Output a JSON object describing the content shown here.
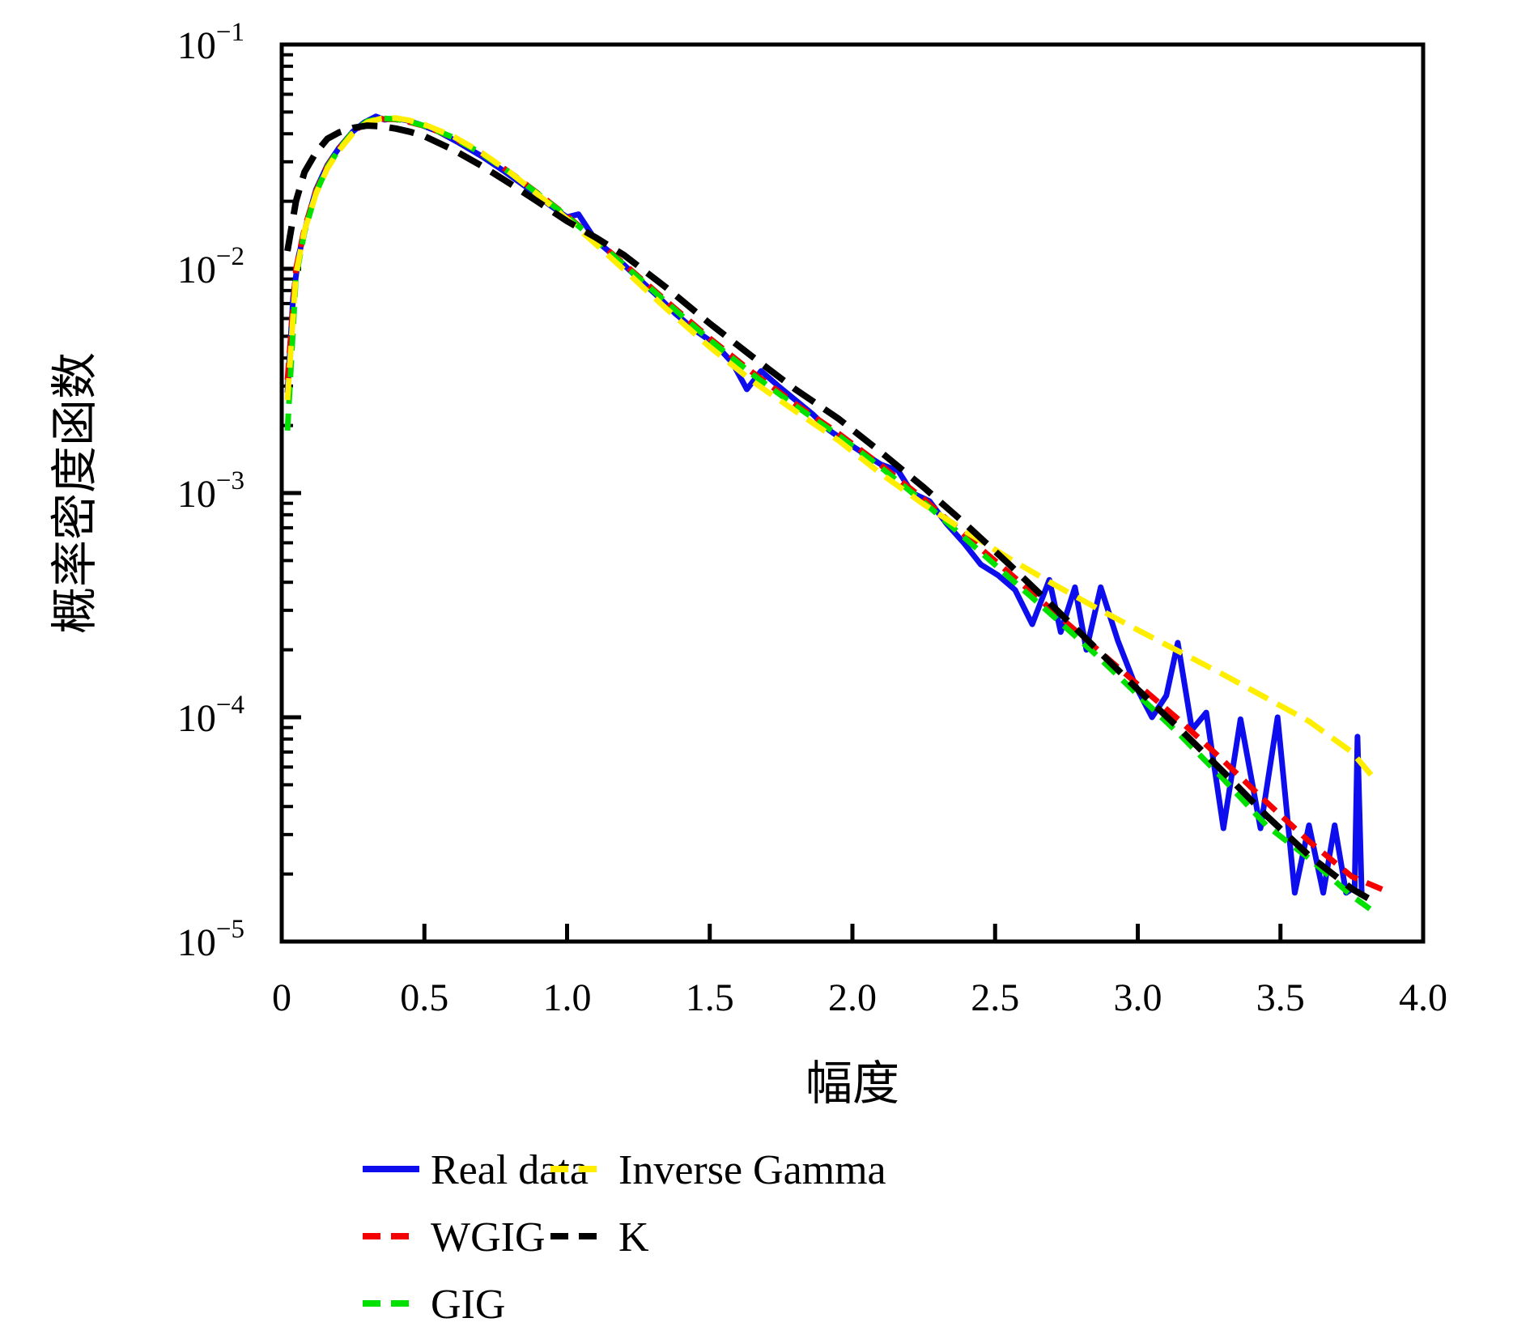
{
  "figure": {
    "background_color": "#ffffff",
    "axis_color": "#000000"
  },
  "chart_data": {
    "type": "line",
    "title": "",
    "xlabel": "幅度",
    "ylabel": "概率密度函数",
    "grid": false,
    "x_axis": {
      "min": 0,
      "max": 4,
      "tick_values": [
        0,
        0.5,
        1.0,
        1.5,
        2.0,
        2.5,
        3.0,
        3.5,
        4.0
      ],
      "tick_labels": [
        "0",
        "0.5",
        "1.0",
        "1.5",
        "2.0",
        "2.5",
        "3.0",
        "3.5",
        "4.0"
      ]
    },
    "y_axis": {
      "scale": "log",
      "min": 1e-05,
      "max": 0.1,
      "tick_base": "10",
      "tick_exponents": [
        -1,
        -2,
        -3,
        -4,
        -5
      ]
    },
    "legend": {
      "position": "below-chart",
      "columns": 2,
      "items": [
        {
          "label": "Real data",
          "series": 0,
          "col": 0,
          "row": 0
        },
        {
          "label": "WGIG",
          "series": 1,
          "col": 0,
          "row": 1
        },
        {
          "label": "GIG",
          "series": 2,
          "col": 0,
          "row": 2
        },
        {
          "label": "Inverse Gamma",
          "series": 3,
          "col": 1,
          "row": 0
        },
        {
          "label": "K",
          "series": 4,
          "col": 1,
          "row": 1
        }
      ]
    },
    "series": [
      {
        "name": "Real data",
        "color": "#0d0dee",
        "style": "solid",
        "x": [
          0.02,
          0.04,
          0.06,
          0.09,
          0.12,
          0.16,
          0.2,
          0.25,
          0.29,
          0.33,
          0.36,
          0.4,
          0.44,
          0.48,
          0.55,
          0.62,
          0.7,
          0.78,
          0.86,
          0.94,
          1.0,
          1.04,
          1.1,
          1.17,
          1.24,
          1.31,
          1.38,
          1.45,
          1.52,
          1.58,
          1.63,
          1.68,
          1.74,
          1.8,
          1.86,
          1.92,
          1.98,
          2.04,
          2.1,
          2.16,
          2.21,
          2.27,
          2.33,
          2.39,
          2.45,
          2.51,
          2.57,
          2.63,
          2.69,
          2.73,
          2.78,
          2.82,
          2.87,
          2.93,
          2.99,
          3.05,
          3.1,
          3.14,
          3.19,
          3.24,
          3.3,
          3.36,
          3.43,
          3.49,
          3.55,
          3.6,
          3.65,
          3.69,
          3.73,
          3.76,
          3.77,
          3.785
        ],
        "y": [
          0.0028,
          0.0075,
          0.0115,
          0.0165,
          0.0225,
          0.029,
          0.0345,
          0.041,
          0.045,
          0.0478,
          0.0462,
          0.0468,
          0.0458,
          0.0442,
          0.0408,
          0.0365,
          0.0318,
          0.0272,
          0.023,
          0.0192,
          0.017,
          0.0175,
          0.0134,
          0.0113,
          0.0093,
          0.0077,
          0.0063,
          0.0053,
          0.0046,
          0.0038,
          0.0029,
          0.0035,
          0.003,
          0.0026,
          0.00225,
          0.0019,
          0.00168,
          0.0015,
          0.00134,
          0.00126,
          0.001,
          0.00092,
          0.00073,
          0.0006,
          0.00048,
          0.00043,
          0.00037,
          0.00026,
          0.00041,
          0.00024,
          0.00038,
          0.0002,
          0.00038,
          0.00022,
          0.00014,
          0.0001,
          0.000125,
          0.000215,
          8.8e-05,
          0.000105,
          3.2e-05,
          9.8e-05,
          3.2e-05,
          0.0001,
          1.65e-05,
          3.3e-05,
          1.65e-05,
          3.3e-05,
          1.65e-05,
          1.75e-05,
          8.2e-05,
          1.58e-05
        ]
      },
      {
        "name": "WGIG",
        "color": "#f50000",
        "style": "dashed",
        "x": [
          0.02,
          0.05,
          0.08,
          0.12,
          0.16,
          0.2,
          0.25,
          0.3,
          0.35,
          0.4,
          0.45,
          0.5,
          0.6,
          0.7,
          0.8,
          0.9,
          1.0,
          1.1,
          1.2,
          1.35,
          1.5,
          1.65,
          1.8,
          1.95,
          2.1,
          2.25,
          2.4,
          2.55,
          2.7,
          2.85,
          3.0,
          3.15,
          3.3,
          3.45,
          3.6,
          3.75,
          3.87
        ],
        "y": [
          0.0032,
          0.01,
          0.0152,
          0.0222,
          0.0287,
          0.0342,
          0.0408,
          0.0452,
          0.0466,
          0.0463,
          0.045,
          0.0433,
          0.0385,
          0.0327,
          0.0269,
          0.0216,
          0.0172,
          0.0135,
          0.0105,
          0.00715,
          0.0049,
          0.00345,
          0.0025,
          0.00185,
          0.00133,
          0.00094,
          0.00064,
          0.00044,
          0.0003,
          0.000205,
          0.00014,
          9.6e-05,
          6.4e-05,
          4.2e-05,
          2.8e-05,
          1.95e-05,
          1.68e-05
        ]
      },
      {
        "name": "GIG",
        "color": "#00e100",
        "style": "dashed",
        "x": [
          0.02,
          0.05,
          0.08,
          0.12,
          0.16,
          0.2,
          0.25,
          0.3,
          0.35,
          0.4,
          0.45,
          0.5,
          0.6,
          0.7,
          0.8,
          0.9,
          1.0,
          1.1,
          1.2,
          1.35,
          1.5,
          1.65,
          1.8,
          1.95,
          2.1,
          2.25,
          2.4,
          2.55,
          2.7,
          2.85,
          3.0,
          3.15,
          3.3,
          3.45,
          3.6,
          3.75,
          3.83
        ],
        "y": [
          0.0019,
          0.0092,
          0.0146,
          0.0218,
          0.0284,
          0.034,
          0.0408,
          0.0455,
          0.0469,
          0.0465,
          0.0452,
          0.0434,
          0.0386,
          0.0327,
          0.0268,
          0.0215,
          0.0171,
          0.0134,
          0.0104,
          0.00705,
          0.00482,
          0.00338,
          0.00245,
          0.00181,
          0.0013,
          0.00091,
          0.00062,
          0.00042,
          0.000285,
          0.000192,
          0.000126,
          8.3e-05,
          5.3e-05,
          3.3e-05,
          2.35e-05,
          1.6e-05,
          1.35e-05
        ]
      },
      {
        "name": "Inverse Gamma",
        "color": "#ffee00",
        "style": "dashed",
        "x": [
          0.02,
          0.05,
          0.08,
          0.12,
          0.16,
          0.2,
          0.25,
          0.3,
          0.35,
          0.4,
          0.45,
          0.5,
          0.6,
          0.7,
          0.8,
          0.9,
          1.0,
          1.1,
          1.2,
          1.35,
          1.5,
          1.65,
          1.8,
          1.95,
          2.1,
          2.25,
          2.4,
          2.55,
          2.7,
          2.85,
          3.0,
          3.15,
          3.3,
          3.45,
          3.6,
          3.75,
          3.83
        ],
        "y": [
          0.0026,
          0.0095,
          0.0148,
          0.0216,
          0.028,
          0.0336,
          0.0402,
          0.045,
          0.0468,
          0.047,
          0.0458,
          0.044,
          0.039,
          0.033,
          0.0269,
          0.0213,
          0.0167,
          0.0129,
          0.0099,
          0.0066,
          0.00448,
          0.00315,
          0.00232,
          0.00172,
          0.00122,
          0.00089,
          0.00067,
          0.00051,
          0.000395,
          0.00031,
          0.000245,
          0.000195,
          0.000155,
          0.000122,
          9.6e-05,
          7e-05,
          5.3e-05
        ]
      },
      {
        "name": "K",
        "color": "#000000",
        "style": "dashed",
        "x": [
          0.02,
          0.05,
          0.08,
          0.12,
          0.16,
          0.2,
          0.25,
          0.3,
          0.35,
          0.4,
          0.45,
          0.5,
          0.6,
          0.7,
          0.8,
          0.9,
          1.0,
          1.1,
          1.2,
          1.35,
          1.5,
          1.65,
          1.8,
          1.95,
          2.1,
          2.25,
          2.4,
          2.55,
          2.7,
          2.85,
          3.0,
          3.15,
          3.3,
          3.45,
          3.6,
          3.75,
          3.83
        ],
        "y": [
          0.012,
          0.02,
          0.027,
          0.033,
          0.038,
          0.0405,
          0.0425,
          0.0435,
          0.0432,
          0.0422,
          0.0408,
          0.039,
          0.034,
          0.0288,
          0.024,
          0.0198,
          0.0163,
          0.0138,
          0.0115,
          0.0082,
          0.0057,
          0.00405,
          0.0029,
          0.00215,
          0.00152,
          0.00106,
          0.00072,
          0.00048,
          0.000315,
          0.000205,
          0.000133,
          8.8e-05,
          5.7e-05,
          3.65e-05,
          2.42e-05,
          1.72e-05,
          1.5e-05
        ]
      }
    ]
  }
}
